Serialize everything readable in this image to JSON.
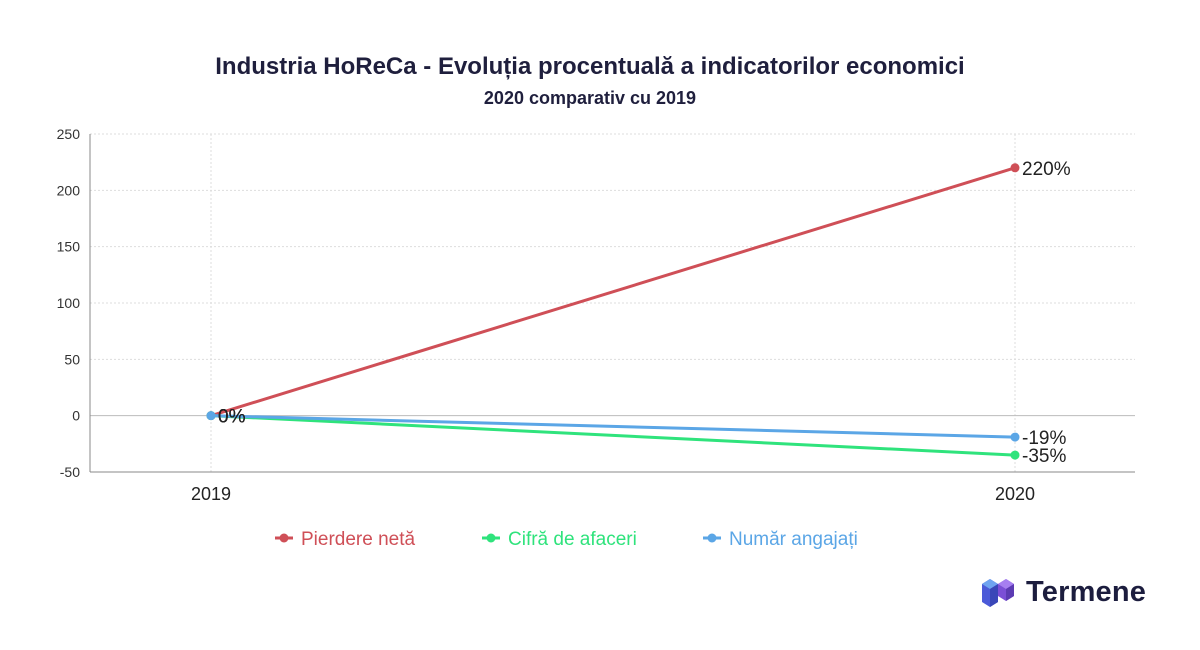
{
  "chart_data": {
    "type": "line",
    "title": "Industria HoReCa - Evoluția procentuală a indicatorilor economici",
    "subtitle": "2020 comparativ cu 2019",
    "categories": [
      "2019",
      "2020"
    ],
    "ylim": [
      -50,
      250
    ],
    "yticks": [
      250,
      200,
      150,
      100,
      50,
      0,
      -50
    ],
    "grid": true,
    "legend_position": "bottom",
    "series": [
      {
        "name": "Pierdere netă",
        "values": [
          0,
          220
        ],
        "labels": [
          "0%",
          "220%"
        ],
        "color": "#cf4f57"
      },
      {
        "name": "Cifră de afaceri",
        "values": [
          0,
          -35
        ],
        "labels": [
          "0%",
          "-35%"
        ],
        "color": "#2fe37c"
      },
      {
        "name": "Număr angajați",
        "values": [
          0,
          -19
        ],
        "labels": [
          "0%",
          "-19%"
        ],
        "color": "#5ba6e6"
      }
    ]
  },
  "brand": {
    "name": "Termene",
    "logo_icon": "termene-cube-logo-icon"
  }
}
